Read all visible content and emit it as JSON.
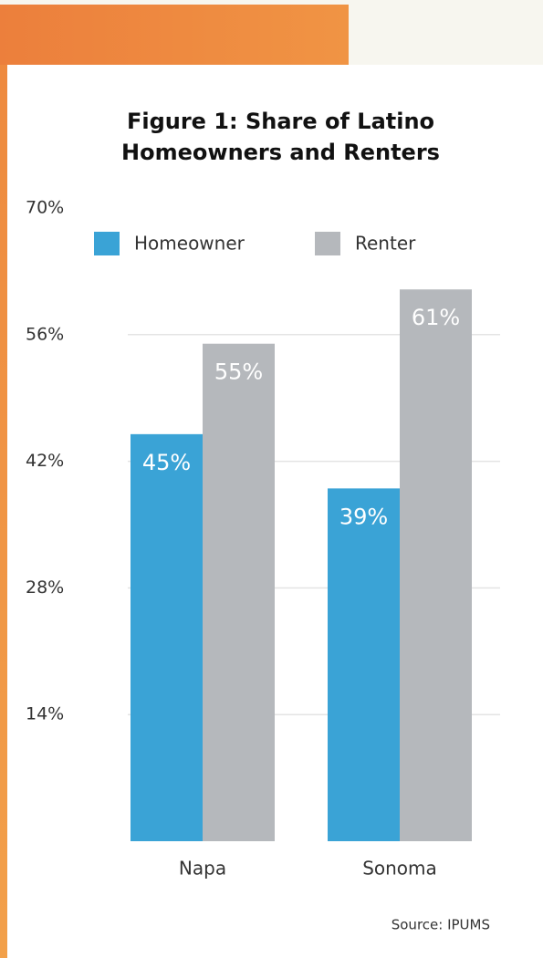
{
  "chart_data": {
    "type": "bar",
    "title": "Figure 1: Share of Latino Homeowners and Renters",
    "categories": [
      "Napa",
      "Sonoma"
    ],
    "series": [
      {
        "name": "Homeowner",
        "color": "#3aa3d6",
        "values": [
          45,
          39
        ],
        "value_labels": [
          "45%",
          "39%"
        ]
      },
      {
        "name": "Renter",
        "color": "#b5b8bc",
        "values": [
          55,
          61
        ],
        "value_labels": [
          "55%",
          "61%"
        ]
      }
    ],
    "ylim": [
      0,
      70
    ],
    "yticks": [
      {
        "value": 14,
        "label": "14%"
      },
      {
        "value": 28,
        "label": "28%"
      },
      {
        "value": 42,
        "label": "42%"
      },
      {
        "value": 56,
        "label": "56%"
      },
      {
        "value": 70,
        "label": "70%"
      }
    ],
    "grid": true,
    "source": "Source: IPUMS"
  }
}
